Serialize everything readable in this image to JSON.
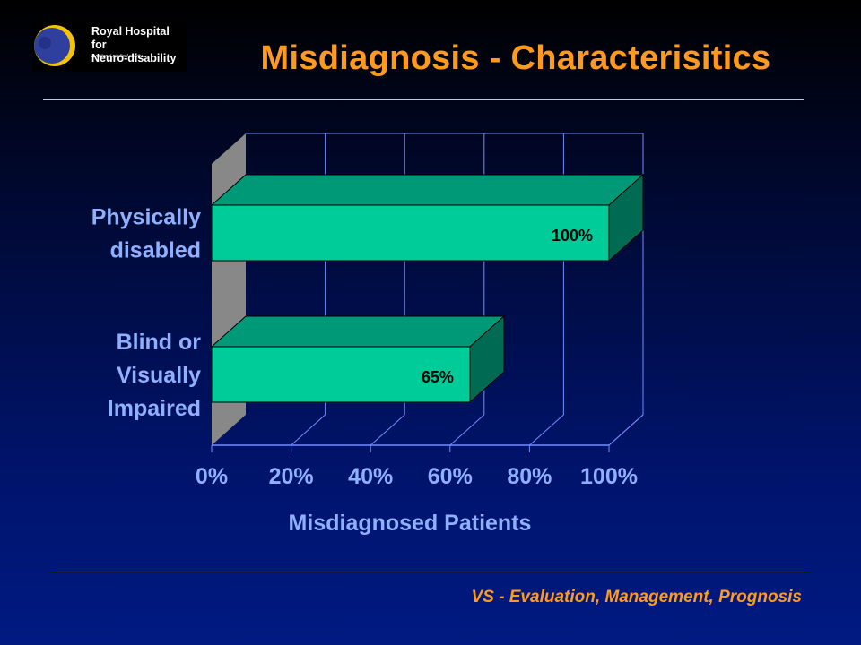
{
  "logo": {
    "line1": "Royal Hospital for",
    "line2": "Neuro-disability",
    "tagline": "A national medical charity"
  },
  "title": "Misdiagnosis - Characterisitics",
  "footer": "VS - Evaluation, Management, Prognosis",
  "colors": {
    "title": "#ff9a1e",
    "axis_text": "#8fb0ff",
    "bar_front": "#00cc99",
    "bar_top": "#009977",
    "bar_side": "#006a52",
    "wall": "#888888",
    "data_label": "#000000"
  },
  "chart_data": {
    "type": "bar",
    "orientation": "horizontal",
    "style": "3d",
    "categories": [
      "Physically disabled",
      "Blind or Visually Impaired"
    ],
    "category_lines": [
      [
        "Physically",
        "disabled"
      ],
      [
        "Blind or",
        "Visually",
        "Impaired"
      ]
    ],
    "values": [
      100,
      65
    ],
    "data_labels": [
      "100%",
      "65%"
    ],
    "xlabel": "Misdiagnosed Patients",
    "ylabel": "",
    "xlim": [
      0,
      100
    ],
    "xticks": [
      "0%",
      "20%",
      "40%",
      "60%",
      "80%",
      "100%"
    ],
    "grid": true
  }
}
